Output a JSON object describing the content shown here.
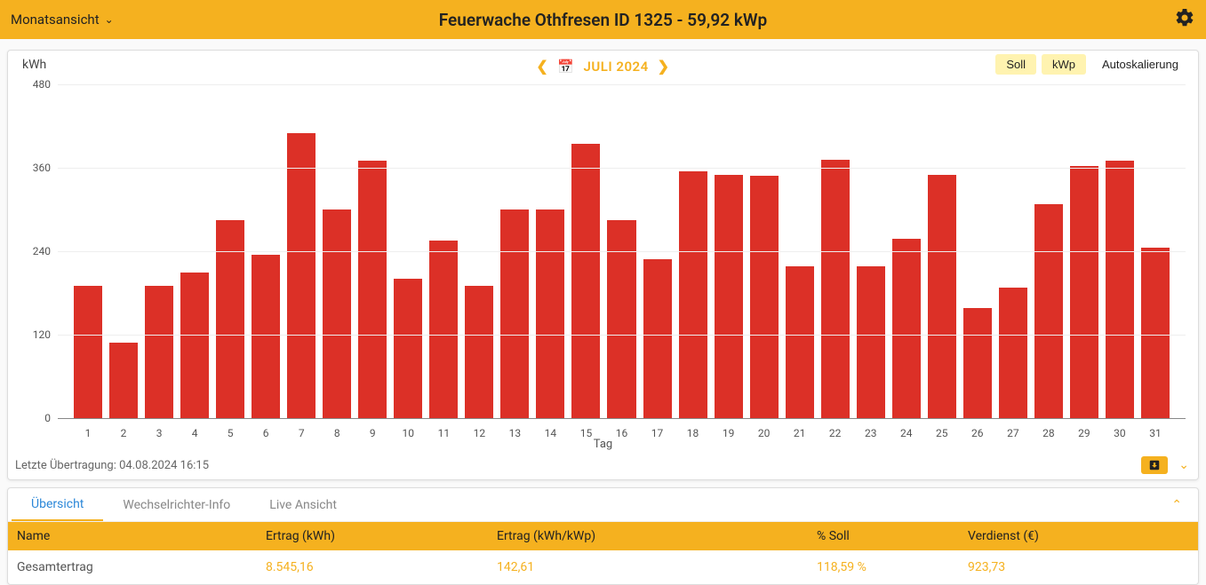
{
  "header": {
    "view_selector_label": "Monatsansicht",
    "title": "Feuerwache Othfresen ID 1325 - 59,92 kWp"
  },
  "chart": {
    "type": "bar",
    "y_unit_label": "kWh",
    "month_label": "JULI 2024",
    "buttons": {
      "soll": "Soll",
      "kwp": "kWp",
      "autoscale": "Autoskalierung"
    },
    "y_ticks": [
      0,
      120,
      240,
      360,
      480
    ],
    "ylim": [
      0,
      480
    ],
    "bar_color": "#dc3027",
    "grid_color": "#eeeeee",
    "background_color": "#ffffff",
    "xaxis_title": "Tag",
    "days": [
      1,
      2,
      3,
      4,
      5,
      6,
      7,
      8,
      9,
      10,
      11,
      12,
      13,
      14,
      15,
      16,
      17,
      18,
      19,
      20,
      21,
      22,
      23,
      24,
      25,
      26,
      27,
      28,
      29,
      30,
      31
    ],
    "values": [
      190,
      108,
      190,
      210,
      285,
      235,
      410,
      300,
      370,
      200,
      255,
      190,
      300,
      300,
      395,
      285,
      228,
      355,
      350,
      348,
      218,
      372,
      218,
      258,
      350,
      158,
      188,
      308,
      362,
      370,
      245
    ]
  },
  "footer": {
    "last_update_label": "Letzte Übertragung: 04.08.2024 16:15"
  },
  "tabs": {
    "items": [
      "Übersicht",
      "Wechselrichter-Info",
      "Live Ansicht"
    ],
    "active_index": 0
  },
  "table": {
    "columns": [
      "Name",
      "Ertrag (kWh)",
      "Ertrag (kWh/kWp)",
      "% Soll",
      "Verdienst (€)"
    ],
    "row": {
      "name": "Gesamtertrag",
      "ertrag": "8.545,16",
      "ertrag_kwp": "142,61",
      "pct_soll": "118,59 %",
      "verdienst": "923,73"
    }
  }
}
